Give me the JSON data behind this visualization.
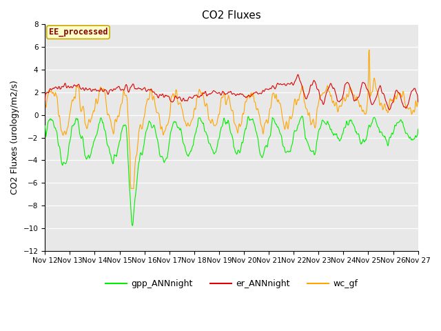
{
  "title": "CO2 Fluxes",
  "ylabel": "CO2 Fluxes (urology/m2/s)",
  "xlabel": "",
  "ylim": [
    -12,
    8
  ],
  "yticks": [
    -12,
    -10,
    -8,
    -6,
    -4,
    -2,
    0,
    2,
    4,
    6,
    8
  ],
  "xtick_labels": [
    "Nov 12",
    "Nov 13",
    "Nov 14",
    "Nov 15",
    "Nov 16",
    "Nov 17",
    "Nov 18",
    "Nov 19",
    "Nov 20",
    "Nov 21",
    "Nov 22",
    "Nov 23",
    "Nov 24",
    "Nov 25",
    "Nov 26",
    "Nov 27"
  ],
  "gpp_color": "#00ee00",
  "er_color": "#dd0000",
  "wc_color": "#ffa500",
  "bg_color": "#e8e8e8",
  "grid_color": "#ffffff",
  "annotation_text": "EE_processed",
  "annotation_color": "#880000",
  "annotation_bg": "#ffffcc",
  "annotation_edge": "#ccaa00",
  "legend_items": [
    "gpp_ANNnight",
    "er_ANNnight",
    "wc_gf"
  ],
  "title_fontsize": 11,
  "axis_fontsize": 9,
  "tick_fontsize": 7.5,
  "legend_fontsize": 9
}
